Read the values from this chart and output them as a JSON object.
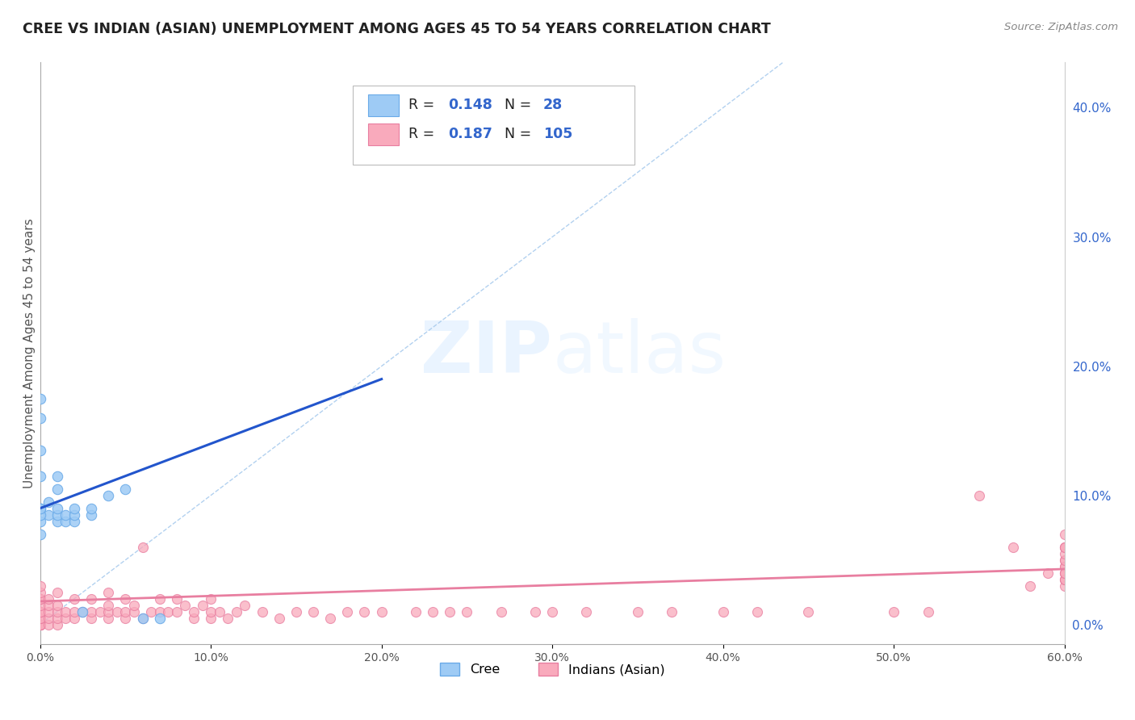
{
  "title": "CREE VS INDIAN (ASIAN) UNEMPLOYMENT AMONG AGES 45 TO 54 YEARS CORRELATION CHART",
  "source_text": "Source: ZipAtlas.com",
  "xlabel": "",
  "ylabel": "Unemployment Among Ages 45 to 54 years",
  "xlim": [
    0.0,
    0.6
  ],
  "ylim": [
    -0.015,
    0.435
  ],
  "xticks": [
    0.0,
    0.1,
    0.2,
    0.3,
    0.4,
    0.5,
    0.6
  ],
  "xticklabels": [
    "0.0%",
    "10.0%",
    "20.0%",
    "30.0%",
    "40.0%",
    "50.0%",
    "60.0%"
  ],
  "yticks_right": [
    0.0,
    0.1,
    0.2,
    0.3,
    0.4
  ],
  "yticklabels_right": [
    "0.0%",
    "10.0%",
    "20.0%",
    "30.0%",
    "40.0%"
  ],
  "cree_color": "#9ECBF5",
  "cree_edge_color": "#6AAAE8",
  "indian_color": "#F9AABC",
  "indian_edge_color": "#E87EA0",
  "cree_line_color": "#2255CC",
  "indian_line_color": "#E87EA0",
  "diag_line_color": "#AACCEE",
  "R_cree": 0.148,
  "N_cree": 28,
  "R_indian": 0.187,
  "N_indian": 105,
  "watermark_zip": "ZIP",
  "watermark_atlas": "atlas",
  "background_color": "#ffffff",
  "grid_color": "#cccccc",
  "legend_label_cree": "Cree",
  "legend_label_indian": "Indians (Asian)",
  "cree_line_x0": 0.0,
  "cree_line_y0": 0.09,
  "cree_line_x1": 0.2,
  "cree_line_y1": 0.19,
  "indian_line_x0": 0.0,
  "indian_line_y0": 0.018,
  "indian_line_x1": 0.6,
  "indian_line_y1": 0.043,
  "cree_scatter_x": [
    0.0,
    0.0,
    0.0,
    0.0,
    0.0,
    0.005,
    0.005,
    0.01,
    0.01,
    0.01,
    0.01,
    0.01,
    0.015,
    0.015,
    0.02,
    0.02,
    0.02,
    0.025,
    0.03,
    0.03,
    0.04,
    0.05,
    0.06,
    0.07,
    0.0,
    0.0,
    0.0,
    0.0
  ],
  "cree_scatter_y": [
    0.09,
    0.115,
    0.135,
    0.16,
    0.175,
    0.085,
    0.095,
    0.08,
    0.085,
    0.09,
    0.105,
    0.115,
    0.08,
    0.085,
    0.08,
    0.085,
    0.09,
    0.01,
    0.085,
    0.09,
    0.1,
    0.105,
    0.005,
    0.005,
    0.07,
    0.08,
    0.085,
    0.09
  ],
  "indian_scatter_x": [
    0.0,
    0.0,
    0.0,
    0.0,
    0.0,
    0.0,
    0.0,
    0.0,
    0.0,
    0.0,
    0.0,
    0.0,
    0.0,
    0.005,
    0.005,
    0.005,
    0.005,
    0.005,
    0.01,
    0.01,
    0.01,
    0.01,
    0.01,
    0.015,
    0.015,
    0.02,
    0.02,
    0.02,
    0.025,
    0.03,
    0.03,
    0.03,
    0.035,
    0.04,
    0.04,
    0.04,
    0.04,
    0.045,
    0.05,
    0.05,
    0.05,
    0.055,
    0.055,
    0.06,
    0.06,
    0.065,
    0.07,
    0.07,
    0.075,
    0.08,
    0.08,
    0.085,
    0.09,
    0.09,
    0.095,
    0.1,
    0.1,
    0.1,
    0.105,
    0.11,
    0.115,
    0.12,
    0.13,
    0.14,
    0.15,
    0.16,
    0.17,
    0.18,
    0.19,
    0.2,
    0.22,
    0.23,
    0.24,
    0.25,
    0.27,
    0.29,
    0.3,
    0.32,
    0.35,
    0.37,
    0.4,
    0.42,
    0.45,
    0.5,
    0.52,
    0.55,
    0.57,
    0.58,
    0.59,
    0.6,
    0.6,
    0.6,
    0.6,
    0.6,
    0.6,
    0.6,
    0.6,
    0.6,
    0.6,
    0.6,
    0.6,
    0.6,
    0.6,
    0.6,
    0.6
  ],
  "indian_scatter_y": [
    0.0,
    0.0,
    0.0,
    0.0,
    0.005,
    0.005,
    0.01,
    0.01,
    0.015,
    0.02,
    0.02,
    0.025,
    0.03,
    0.0,
    0.005,
    0.01,
    0.015,
    0.02,
    0.0,
    0.005,
    0.01,
    0.015,
    0.025,
    0.005,
    0.01,
    0.005,
    0.01,
    0.02,
    0.01,
    0.005,
    0.01,
    0.02,
    0.01,
    0.005,
    0.01,
    0.015,
    0.025,
    0.01,
    0.005,
    0.01,
    0.02,
    0.01,
    0.015,
    0.005,
    0.06,
    0.01,
    0.01,
    0.02,
    0.01,
    0.01,
    0.02,
    0.015,
    0.005,
    0.01,
    0.015,
    0.005,
    0.01,
    0.02,
    0.01,
    0.005,
    0.01,
    0.015,
    0.01,
    0.005,
    0.01,
    0.01,
    0.005,
    0.01,
    0.01,
    0.01,
    0.01,
    0.01,
    0.01,
    0.01,
    0.01,
    0.01,
    0.01,
    0.01,
    0.01,
    0.01,
    0.01,
    0.01,
    0.01,
    0.01,
    0.01,
    0.1,
    0.06,
    0.03,
    0.04,
    0.07,
    0.035,
    0.045,
    0.06,
    0.05,
    0.04,
    0.03,
    0.035,
    0.045,
    0.035,
    0.04,
    0.05,
    0.055,
    0.06,
    0.04,
    0.06
  ]
}
